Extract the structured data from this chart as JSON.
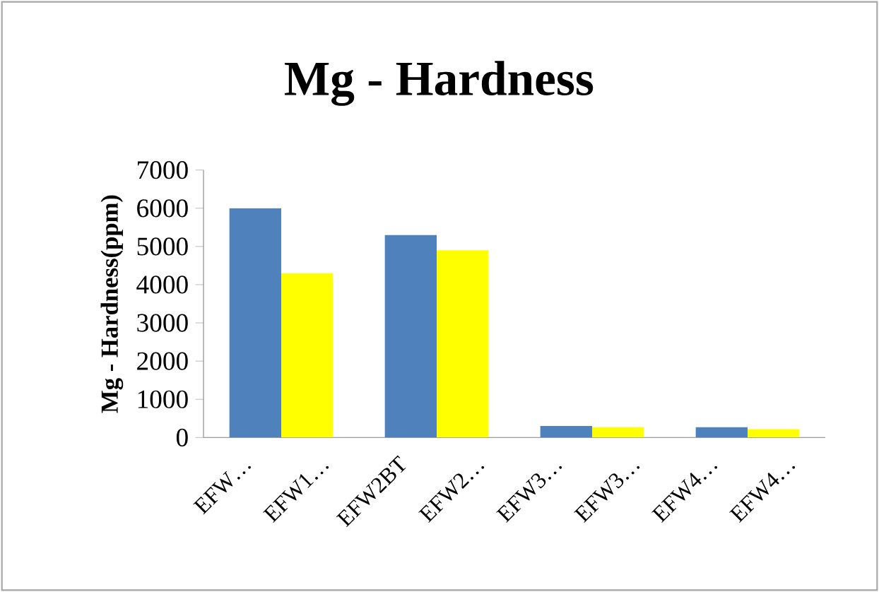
{
  "chart_data": {
    "type": "bar",
    "title": "Mg - Hardness",
    "ylabel": "Mg - Hardness(ppm)",
    "categories": [
      "EFW…",
      "EFW1…",
      "EFW2BT",
      "EFW2…",
      "EFW3…",
      "EFW3…",
      "EFW4…",
      "EFW4…"
    ],
    "series": [
      {
        "color": "#4f81bd",
        "values": [
          6000,
          null,
          5300,
          null,
          300,
          null,
          270,
          null
        ]
      },
      {
        "color": "#ffff00",
        "values": [
          null,
          4300,
          null,
          4900,
          null,
          270,
          null,
          220
        ]
      }
    ],
    "ylim": [
      0,
      7000
    ],
    "yticks": [
      0,
      1000,
      2000,
      3000,
      4000,
      5000,
      6000,
      7000
    ],
    "grid": false
  }
}
